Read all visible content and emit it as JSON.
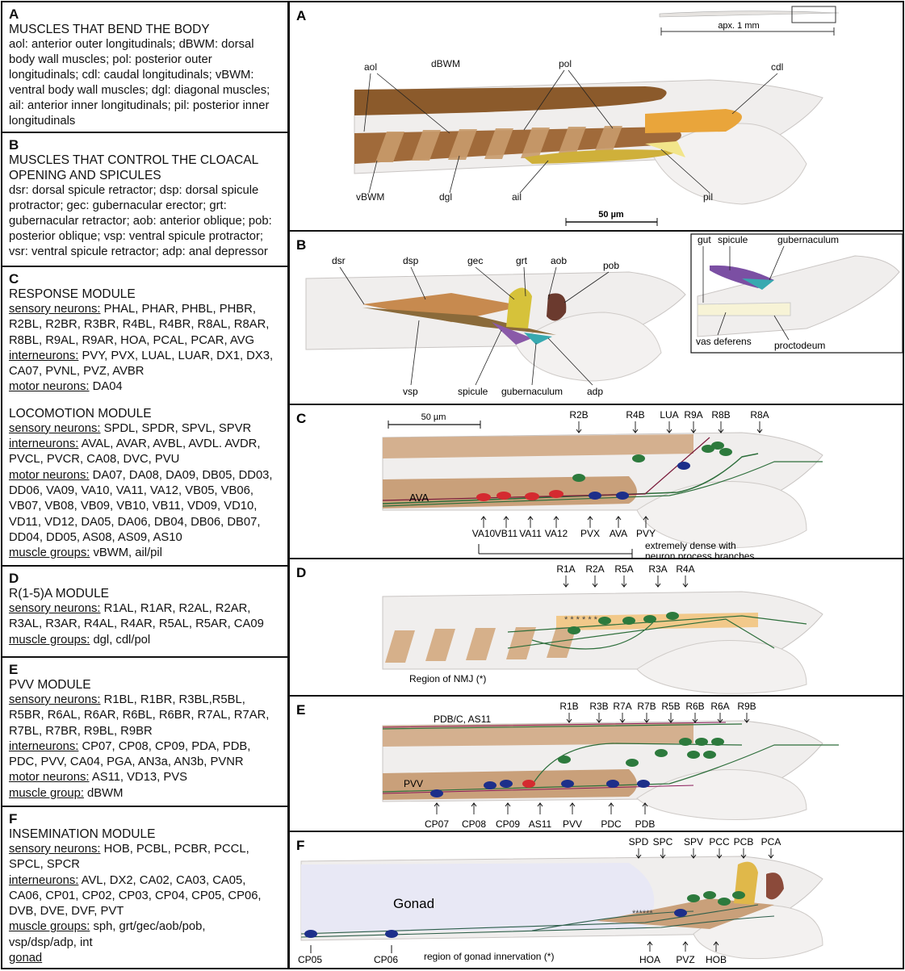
{
  "left": {
    "A": {
      "letter": "A",
      "title": "MUSCLES THAT BEND THE BODY",
      "text": "aol: anterior outer longitudinals; dBWM: dorsal body wall muscles; pol: posterior outer longitudinals; cdl: caudal longitudinals; vBWM: ventral body wall muscles; dgl: diagonal muscles; ail: anterior inner longitudinals; pil: posterior inner longitudinals"
    },
    "B": {
      "letter": "B",
      "title": "MUSCLES THAT CONTROL THE CLOACAL OPENING AND SPICULES",
      "text": "dsr: dorsal spicule retractor; dsp: dorsal spicule protractor; gec: gubernacular erector; grt: gubernacular retractor; aob: anterior oblique; pob: posterior oblique; vsp: ventral spicule protractor; vsr: ventral spicule retractor; adp: anal depressor"
    },
    "C": {
      "letter": "C",
      "title1": "RESPONSE MODULE",
      "r1": {
        "cat": "sensory neurons:",
        "val": " PHAL, PHAR, PHBL, PHBR,"
      },
      "r2": "R2BL, R2BR, R3BR, R4BL, R4BR, R8AL, R8AR,",
      "r3": "R8BL, R9AL, R9AR, HOA, PCAL, PCAR, AVG",
      "r4": {
        "cat": "interneurons:",
        "val": " PVY, PVX, LUAL, LUAR, DX1, DX3,"
      },
      "r5": "CA07, PVNL, PVZ, AVBR",
      "r6": {
        "cat": "motor neurons:",
        "val": " DA04"
      },
      "title2": "LOCOMOTION MODULE",
      "l1": {
        "cat": "sensory neurons:",
        "val": " SPDL, SPDR, SPVL, SPVR"
      },
      "l2": {
        "cat": "interneurons:",
        "val": " AVAL, AVAR, AVBL, AVDL. AVDR,"
      },
      "l3": "PVCL, PVCR, CA08, DVC, PVU",
      "l4": {
        "cat": "motor neurons:",
        "val": " DA07, DA08, DA09, DB05, DD03,"
      },
      "l5": "DD06, VA09, VA10, VA11, VA12, VB05, VB06,",
      "l6": "VB07, VB08, VB09, VB10, VB11, VD09, VD10,",
      "l7": "VD11, VD12, DA05, DA06, DB04, DB06, DB07,",
      "l8": "DD04, DD05, AS08, AS09, AS10",
      "l9": {
        "cat": "muscle groups:",
        "val": " vBWM, ail/pil"
      }
    },
    "D": {
      "letter": "D",
      "title": "R(1-5)A MODULE",
      "r1": {
        "cat": "sensory neurons:",
        "val": " R1AL, R1AR, R2AL, R2AR,"
      },
      "r2": "R3AL, R3AR, R4AL, R4AR, R5AL, R5AR, CA09",
      "r3": {
        "cat": "muscle groups:",
        "val": " dgl, cdl/pol"
      }
    },
    "E": {
      "letter": "E",
      "title": "PVV MODULE",
      "r1": {
        "cat": "sensory neurons:",
        "val": " R1BL, R1BR, R3BL,R5BL,"
      },
      "r2": "R5BR, R6AL, R6AR, R6BL, R6BR, R7AL, R7AR,",
      "r3": "R7BL, R7BR, R9BL, R9BR",
      "r4": {
        "cat": "interneurons:",
        "val": " CP07, CP08, CP09, PDA, PDB,"
      },
      "r5": "PDC, PVV, CA04, PGA, AN3a, AN3b, PVNR",
      "r6": {
        "cat": "motor neurons:",
        "val": " AS11, VD13, PVS"
      },
      "r7": {
        "cat": "muscle group:",
        "val": " dBWM"
      }
    },
    "F": {
      "letter": "F",
      "title": "INSEMINATION MODULE",
      "r1": {
        "cat": "sensory neurons:",
        "val": " HOB, PCBL, PCBR, PCCL,"
      },
      "r2": "SPCL, SPCR",
      "r3": {
        "cat": "interneurons:",
        "val": " AVL, DX2, CA02, CA03, CA05,"
      },
      "r4": "CA06, CP01, CP02, CP03, CP04, CP05, CP06,",
      "r5": "DVB, DVE, DVF, PVT",
      "r6": {
        "cat": "muscle groups:",
        "val": " sph, grt/gec/aob/pob,"
      },
      "r7": "vsp/dsp/adp, int",
      "r8": {
        "cat": "gonad",
        "val": ""
      }
    }
  },
  "right": {
    "A": {
      "letter": "A",
      "scale_top": "apx. 1 mm",
      "scale_bottom": "50 µm",
      "labels": {
        "aol": "aol",
        "dBWM": "dBWM",
        "pol": "pol",
        "cdl": "cdl",
        "vBWM": "vBWM",
        "dgl": "dgl",
        "ail": "ail",
        "pil": "pil"
      }
    },
    "B": {
      "letter": "B",
      "labels": {
        "dsr": "dsr",
        "dsp": "dsp",
        "gec": "gec",
        "grt": "grt",
        "aob": "aob",
        "pob": "pob",
        "vsp": "vsp",
        "spicule": "spicule",
        "gubernaculum": "gubernaculum",
        "adp": "adp"
      },
      "inset": {
        "gut": "gut",
        "spicule": "spicule",
        "gubernaculum": "gubernaculum",
        "vas_deferens": "vas deferens",
        "proctodeum": "proctodeum"
      }
    },
    "C": {
      "letter": "C",
      "scale": "50 µm",
      "top": [
        "R2B",
        "R4B",
        "LUA",
        "R9A",
        "R8B",
        "R8A"
      ],
      "bottom": [
        "VA10",
        "VB11",
        "VA11",
        "VA12",
        "PVX",
        "AVA",
        "PVY"
      ],
      "ava": "AVA",
      "note1": "extremely dense with",
      "note2": "neuron process branches"
    },
    "D": {
      "letter": "D",
      "top": [
        "R1A",
        "R2A",
        "R5A",
        "R3A",
        "R4A"
      ],
      "nmj": "Region of NMJ (*)"
    },
    "E": {
      "letter": "E",
      "top": [
        "R1B",
        "R3B",
        "R7A",
        "R7B",
        "R5B",
        "R6B",
        "R6A",
        "R9B"
      ],
      "bottom": [
        "CP07",
        "CP08",
        "CP09",
        "AS11",
        "PVV",
        "PDC",
        "PDB"
      ],
      "pdb": "PDB/C, AS11",
      "pvv": "PVV"
    },
    "F": {
      "letter": "F",
      "top": [
        "SPD",
        "SPC",
        "SPV",
        "PCC",
        "PCB",
        "PCA"
      ],
      "gonad": "Gonad",
      "cp05": "CP05",
      "cp06": "CP06",
      "region": "region of gonad innervation (*)",
      "bottom": [
        "HOA",
        "PVZ",
        "HOB"
      ]
    }
  }
}
